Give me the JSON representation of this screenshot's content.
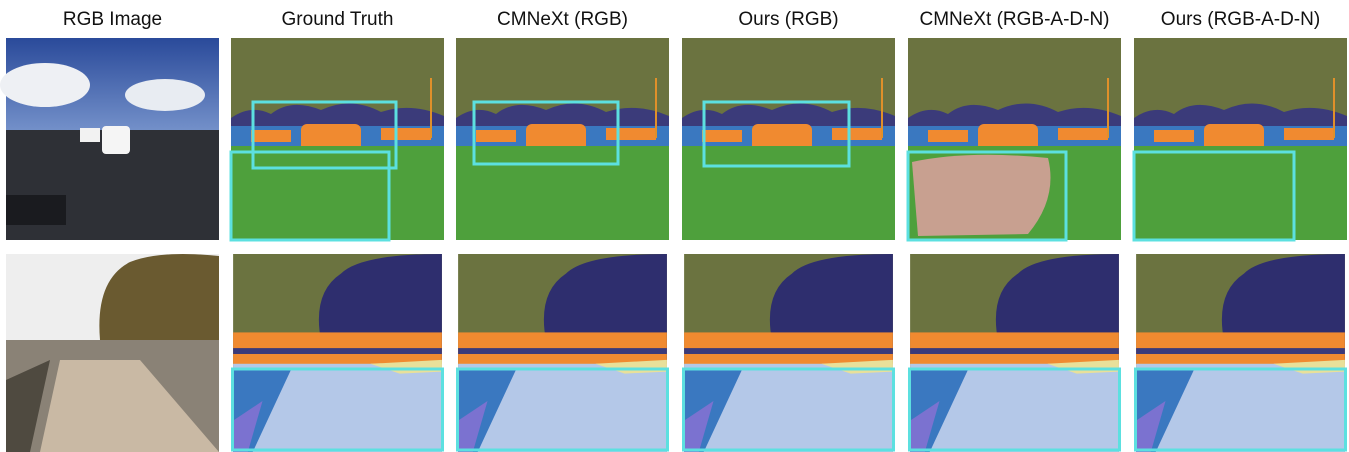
{
  "headers": [
    "RGB Image",
    "Ground Truth",
    "CMNeXt (RGB)",
    "Ours (RGB)",
    "CMNeXt (RGB-A-D-N)",
    "Ours (RGB-A-D-N)"
  ]
}
